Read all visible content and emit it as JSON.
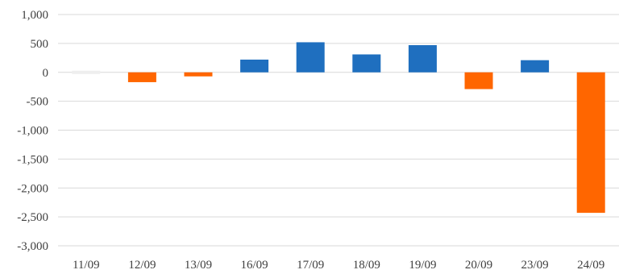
{
  "chart_data": {
    "type": "bar",
    "title": "",
    "xlabel": "",
    "ylabel": "",
    "ylim": [
      -3000,
      1000
    ],
    "yticks": [
      1000,
      500,
      0,
      -500,
      -1000,
      -1500,
      -2000,
      -2500,
      -3000
    ],
    "ytick_labels": [
      "1,000",
      "500",
      "0",
      "-500",
      "-1,000",
      "-1,500",
      "-2,000",
      "-2,500",
      "-3,000"
    ],
    "categories": [
      "11/09",
      "12/09",
      "13/09",
      "16/09",
      "17/09",
      "18/09",
      "19/09",
      "20/09",
      "23/09",
      "24/09"
    ],
    "values": [
      0,
      -170,
      -70,
      220,
      520,
      310,
      470,
      -290,
      210,
      -2430
    ],
    "grid": true,
    "legend": "none",
    "colors": {
      "positive": "#1f6fbf",
      "negative": "#ff6600",
      "zero": "#eeeeee",
      "grid": "#d9d9d9"
    }
  }
}
